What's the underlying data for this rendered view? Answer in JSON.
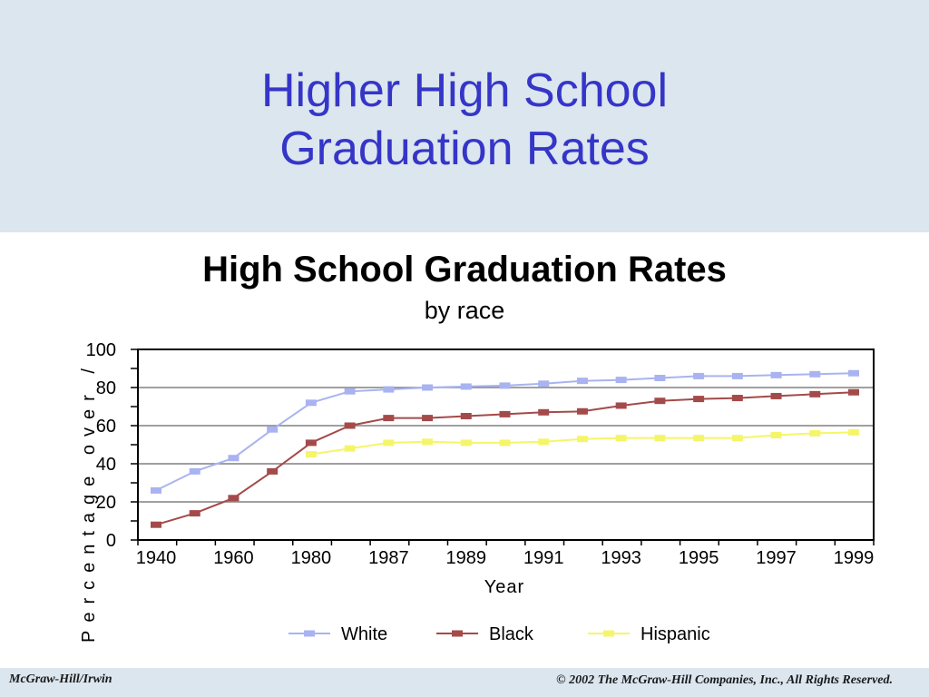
{
  "slide": {
    "title_line1": "Higher High School",
    "title_line2": "Graduation Rates",
    "footer_left": "McGraw-Hill/Irwin",
    "footer_right": "© 2002 The McGraw-Hill Companies, Inc., All Rights Reserved."
  },
  "colors": {
    "background": "#dbe6ef",
    "title": "#3535c8",
    "white_series": "#a9b3f0",
    "black_series": "#a54a4a",
    "hispanic_series": "#f5f56a"
  },
  "chart_data": {
    "type": "line",
    "title": "High School Graduation Rates",
    "subtitle": "by race",
    "xlabel": "Year",
    "ylabel": "Percentage over /",
    "ylim": [
      0,
      100
    ],
    "yticks": [
      "0",
      "20",
      "40",
      "60",
      "80",
      "100"
    ],
    "x_tick_labels": [
      "1940",
      "1960",
      "1980",
      "1987",
      "1989",
      "1991",
      "1993",
      "1995",
      "1997",
      "1999"
    ],
    "grid": "horizontal",
    "legend_position": "bottom",
    "series": [
      {
        "name": "White",
        "color": "#a9b3f0",
        "points": [
          [
            0,
            26
          ],
          [
            1,
            36
          ],
          [
            2,
            43
          ],
          [
            3,
            58
          ],
          [
            4,
            72
          ],
          [
            5,
            78
          ],
          [
            6,
            79
          ],
          [
            7,
            80
          ],
          [
            8,
            80.5
          ],
          [
            9,
            81
          ],
          [
            10,
            82
          ],
          [
            11,
            83.5
          ],
          [
            12,
            84
          ],
          [
            13,
            85
          ],
          [
            14,
            86
          ],
          [
            15,
            86
          ],
          [
            16,
            86.5
          ],
          [
            17,
            87
          ],
          [
            18,
            87.5
          ]
        ]
      },
      {
        "name": "Black",
        "color": "#a54a4a",
        "points": [
          [
            0,
            8
          ],
          [
            1,
            14
          ],
          [
            2,
            22
          ],
          [
            3,
            36
          ],
          [
            4,
            51
          ],
          [
            5,
            60
          ],
          [
            6,
            64
          ],
          [
            7,
            64
          ],
          [
            8,
            65
          ],
          [
            9,
            66
          ],
          [
            10,
            67
          ],
          [
            11,
            67.5
          ],
          [
            12,
            70.5
          ],
          [
            13,
            73
          ],
          [
            14,
            74
          ],
          [
            15,
            74.5
          ],
          [
            16,
            75.5
          ],
          [
            17,
            76.5
          ],
          [
            18,
            77.5
          ]
        ]
      },
      {
        "name": "Hispanic",
        "color": "#f5f56a",
        "points": [
          [
            4,
            45
          ],
          [
            5,
            48
          ],
          [
            6,
            51
          ],
          [
            7,
            51.5
          ],
          [
            8,
            51
          ],
          [
            9,
            51
          ],
          [
            10,
            51.5
          ],
          [
            11,
            53
          ],
          [
            12,
            53.5
          ],
          [
            13,
            53.5
          ],
          [
            14,
            53.5
          ],
          [
            15,
            53.5
          ],
          [
            16,
            55
          ],
          [
            17,
            56
          ],
          [
            18,
            56.5
          ]
        ]
      }
    ]
  }
}
